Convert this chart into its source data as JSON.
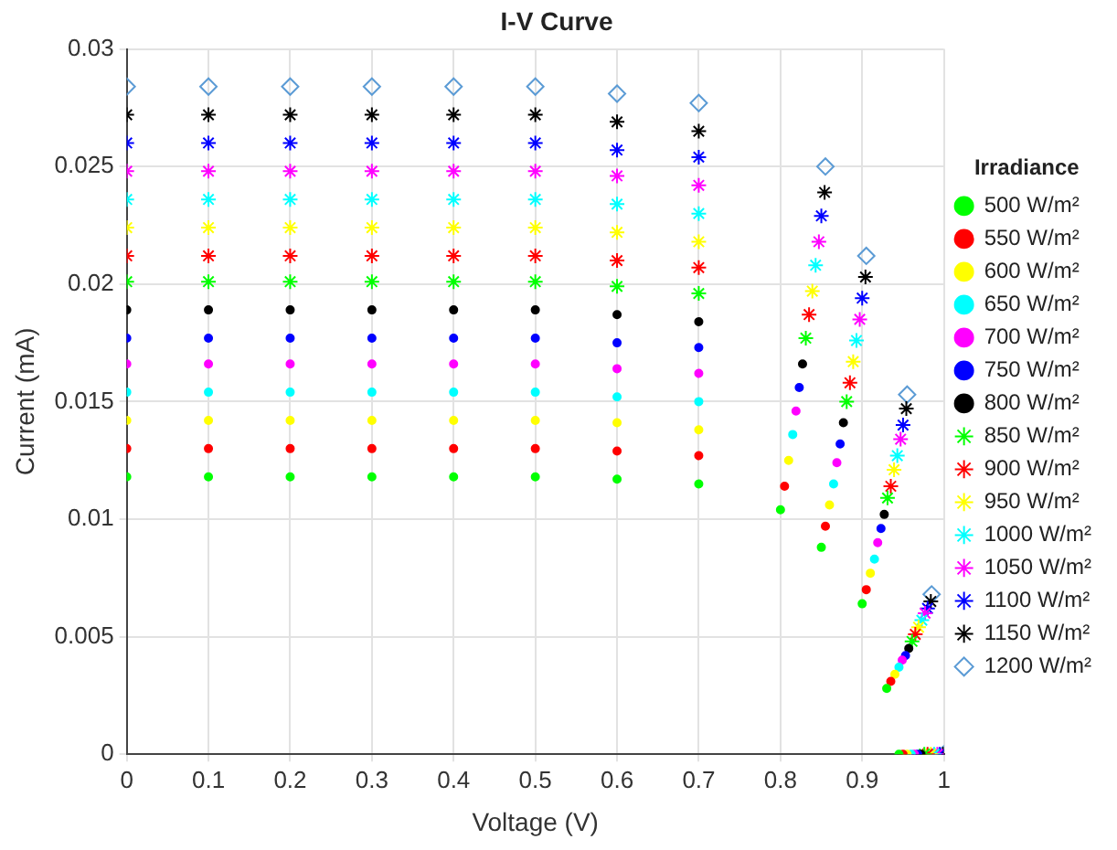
{
  "chart_data": {
    "type": "scatter",
    "title": "I-V Curve",
    "xlabel": "Voltage (V)",
    "ylabel": "Current (mA)",
    "legend_title": "Irradiance",
    "legend": "right",
    "grid": true,
    "xlim": [
      0,
      1
    ],
    "xticks": [
      0,
      0.1,
      0.2,
      0.3,
      0.4,
      0.5,
      0.6,
      0.7,
      0.8,
      0.9,
      1
    ],
    "ylim": [
      0,
      0.03
    ],
    "yticks": [
      0,
      0.005,
      0.01,
      0.015,
      0.02,
      0.025,
      0.03
    ],
    "series": [
      {
        "name": "500 W/m²",
        "color": "#00ff00",
        "marker": "circle",
        "x": [
          0,
          0.1,
          0.2,
          0.3,
          0.4,
          0.5,
          0.6,
          0.7,
          0.8,
          0.85,
          0.9,
          0.93,
          0.945
        ],
        "values": [
          0.0118,
          0.0118,
          0.0118,
          0.0118,
          0.0118,
          0.0118,
          0.0117,
          0.0115,
          0.0104,
          0.0088,
          0.0064,
          0.0028,
          0
        ]
      },
      {
        "name": "550 W/m²",
        "color": "#ff0000",
        "marker": "circle",
        "x": [
          0,
          0.1,
          0.2,
          0.3,
          0.4,
          0.5,
          0.6,
          0.7,
          0.805,
          0.855,
          0.905,
          0.935,
          0.95
        ],
        "values": [
          0.013,
          0.013,
          0.013,
          0.013,
          0.013,
          0.013,
          0.0129,
          0.0127,
          0.0114,
          0.0097,
          0.007,
          0.0031,
          0
        ]
      },
      {
        "name": "600 W/m²",
        "color": "#ffff00",
        "marker": "circle",
        "x": [
          0,
          0.1,
          0.2,
          0.3,
          0.4,
          0.5,
          0.6,
          0.7,
          0.81,
          0.86,
          0.91,
          0.94,
          0.955
        ],
        "values": [
          0.0142,
          0.0142,
          0.0142,
          0.0142,
          0.0142,
          0.0142,
          0.0141,
          0.0138,
          0.0125,
          0.0106,
          0.0077,
          0.0034,
          0
        ]
      },
      {
        "name": "650 W/m²",
        "color": "#00ffff",
        "marker": "circle",
        "x": [
          0,
          0.1,
          0.2,
          0.3,
          0.4,
          0.5,
          0.6,
          0.7,
          0.815,
          0.865,
          0.915,
          0.945,
          0.96
        ],
        "values": [
          0.0154,
          0.0154,
          0.0154,
          0.0154,
          0.0154,
          0.0154,
          0.0152,
          0.015,
          0.0136,
          0.0115,
          0.0083,
          0.0037,
          0
        ]
      },
      {
        "name": "700 W/m²",
        "color": "#ff00ff",
        "marker": "circle",
        "x": [
          0,
          0.1,
          0.2,
          0.3,
          0.4,
          0.5,
          0.6,
          0.7,
          0.819,
          0.869,
          0.919,
          0.949,
          0.964
        ],
        "values": [
          0.0166,
          0.0166,
          0.0166,
          0.0166,
          0.0166,
          0.0166,
          0.0164,
          0.0162,
          0.0146,
          0.0124,
          0.009,
          0.004,
          0
        ]
      },
      {
        "name": "750 W/m²",
        "color": "#0000ff",
        "marker": "circle",
        "x": [
          0,
          0.1,
          0.2,
          0.3,
          0.4,
          0.5,
          0.6,
          0.7,
          0.823,
          0.873,
          0.923,
          0.953,
          0.968
        ],
        "values": [
          0.0177,
          0.0177,
          0.0177,
          0.0177,
          0.0177,
          0.0177,
          0.0175,
          0.0173,
          0.0156,
          0.0132,
          0.0096,
          0.0042,
          0
        ]
      },
      {
        "name": "800 W/m²",
        "color": "#000000",
        "marker": "circle",
        "x": [
          0,
          0.1,
          0.2,
          0.3,
          0.4,
          0.5,
          0.6,
          0.7,
          0.827,
          0.877,
          0.927,
          0.957,
          0.972
        ],
        "values": [
          0.0189,
          0.0189,
          0.0189,
          0.0189,
          0.0189,
          0.0189,
          0.0187,
          0.0184,
          0.0166,
          0.0141,
          0.0102,
          0.0045,
          0
        ]
      },
      {
        "name": "850 W/m²",
        "color": "#00ff00",
        "marker": "cross",
        "x": [
          0,
          0.1,
          0.2,
          0.3,
          0.4,
          0.5,
          0.6,
          0.7,
          0.831,
          0.881,
          0.931,
          0.961,
          0.976
        ],
        "values": [
          0.0201,
          0.0201,
          0.0201,
          0.0201,
          0.0201,
          0.0201,
          0.0199,
          0.0196,
          0.0177,
          0.015,
          0.0109,
          0.0048,
          0
        ]
      },
      {
        "name": "900 W/m²",
        "color": "#ff0000",
        "marker": "cross",
        "x": [
          0,
          0.1,
          0.2,
          0.3,
          0.4,
          0.5,
          0.6,
          0.7,
          0.835,
          0.885,
          0.935,
          0.965,
          0.98
        ],
        "values": [
          0.0212,
          0.0212,
          0.0212,
          0.0212,
          0.0212,
          0.0212,
          0.021,
          0.0207,
          0.0187,
          0.0158,
          0.0114,
          0.0051,
          0
        ]
      },
      {
        "name": "950 W/m²",
        "color": "#ffff00",
        "marker": "cross",
        "x": [
          0,
          0.1,
          0.2,
          0.3,
          0.4,
          0.5,
          0.6,
          0.7,
          0.839,
          0.889,
          0.939,
          0.969,
          0.984
        ],
        "values": [
          0.0224,
          0.0224,
          0.0224,
          0.0224,
          0.0224,
          0.0224,
          0.0222,
          0.0218,
          0.0197,
          0.0167,
          0.0121,
          0.0054,
          0
        ]
      },
      {
        "name": "1000 W/m²",
        "color": "#00ffff",
        "marker": "cross",
        "x": [
          0,
          0.1,
          0.2,
          0.3,
          0.4,
          0.5,
          0.6,
          0.7,
          0.843,
          0.893,
          0.943,
          0.973,
          0.988
        ],
        "values": [
          0.0236,
          0.0236,
          0.0236,
          0.0236,
          0.0236,
          0.0236,
          0.0234,
          0.023,
          0.0208,
          0.0176,
          0.0127,
          0.0057,
          0
        ]
      },
      {
        "name": "1050 W/m²",
        "color": "#ff00ff",
        "marker": "cross",
        "x": [
          0,
          0.1,
          0.2,
          0.3,
          0.4,
          0.5,
          0.6,
          0.7,
          0.847,
          0.897,
          0.947,
          0.977,
          0.992
        ],
        "values": [
          0.0248,
          0.0248,
          0.0248,
          0.0248,
          0.0248,
          0.0248,
          0.0246,
          0.0242,
          0.0218,
          0.0185,
          0.0134,
          0.006,
          0
        ]
      },
      {
        "name": "1100 W/m²",
        "color": "#0000ff",
        "marker": "cross",
        "x": [
          0,
          0.1,
          0.2,
          0.3,
          0.4,
          0.5,
          0.6,
          0.7,
          0.85,
          0.9,
          0.95,
          0.98,
          0.995
        ],
        "values": [
          0.026,
          0.026,
          0.026,
          0.026,
          0.026,
          0.026,
          0.0257,
          0.0254,
          0.0229,
          0.0194,
          0.014,
          0.0062,
          0
        ]
      },
      {
        "name": "1150 W/m²",
        "color": "#000000",
        "marker": "cross",
        "x": [
          0,
          0.1,
          0.2,
          0.3,
          0.4,
          0.5,
          0.6,
          0.7,
          0.854,
          0.904,
          0.954,
          0.984,
          0.999
        ],
        "values": [
          0.0272,
          0.0272,
          0.0272,
          0.0272,
          0.0272,
          0.0272,
          0.0269,
          0.0265,
          0.0239,
          0.0203,
          0.0147,
          0.0065,
          0
        ]
      },
      {
        "name": "1200 W/m²",
        "color": "#5b9bd5",
        "marker": "diamond",
        "x": [
          0,
          0.1,
          0.2,
          0.3,
          0.4,
          0.5,
          0.6,
          0.7,
          0.855,
          0.905,
          0.955,
          0.985,
          1
        ],
        "values": [
          0.0284,
          0.0284,
          0.0284,
          0.0284,
          0.0284,
          0.0284,
          0.0281,
          0.0277,
          0.025,
          0.0212,
          0.0153,
          0.0068,
          0
        ]
      }
    ]
  }
}
